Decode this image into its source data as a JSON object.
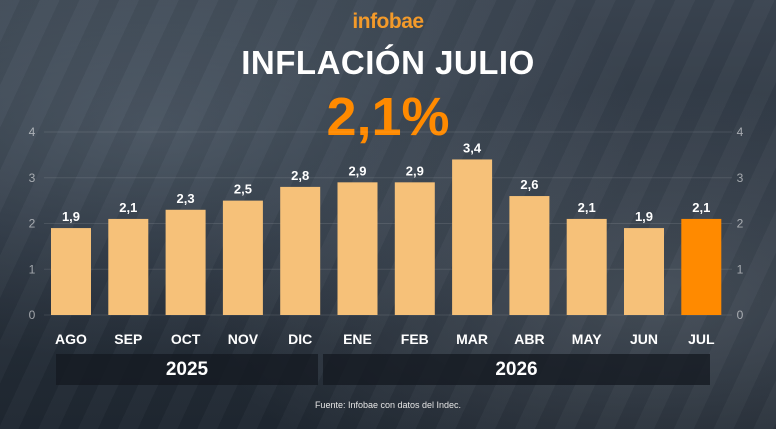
{
  "brand": "infobae",
  "title": "INFLACIÓN JULIO",
  "headline": "2,1%",
  "source": "Fuente: Infobae con datos del Indec.",
  "chart_data": {
    "type": "bar",
    "title": "INFLACIÓN JULIO",
    "categories": [
      "AGO",
      "SEP",
      "OCT",
      "NOV",
      "DIC",
      "ENE",
      "FEB",
      "MAR",
      "ABR",
      "MAY",
      "JUN",
      "JUL"
    ],
    "values": [
      1.9,
      2.1,
      2.3,
      2.5,
      2.8,
      2.9,
      2.9,
      3.4,
      2.6,
      2.1,
      1.9,
      2.1
    ],
    "value_labels": [
      "1,9",
      "2,1",
      "2,3",
      "2,5",
      "2,8",
      "2,9",
      "2,9",
      "3,4",
      "2,6",
      "2,1",
      "1,9",
      "2,1"
    ],
    "highlight_index": 11,
    "year_groups": [
      {
        "label": "2025",
        "from": 0,
        "to": 4
      },
      {
        "label": "2026",
        "from": 5,
        "to": 11
      }
    ],
    "ylim": [
      0,
      4
    ],
    "yticks": [
      "0",
      "1",
      "2",
      "3",
      "4"
    ],
    "y_axis_both_sides": true,
    "colors": {
      "bar": "#f6c179",
      "highlight": "#ff8a00"
    }
  }
}
